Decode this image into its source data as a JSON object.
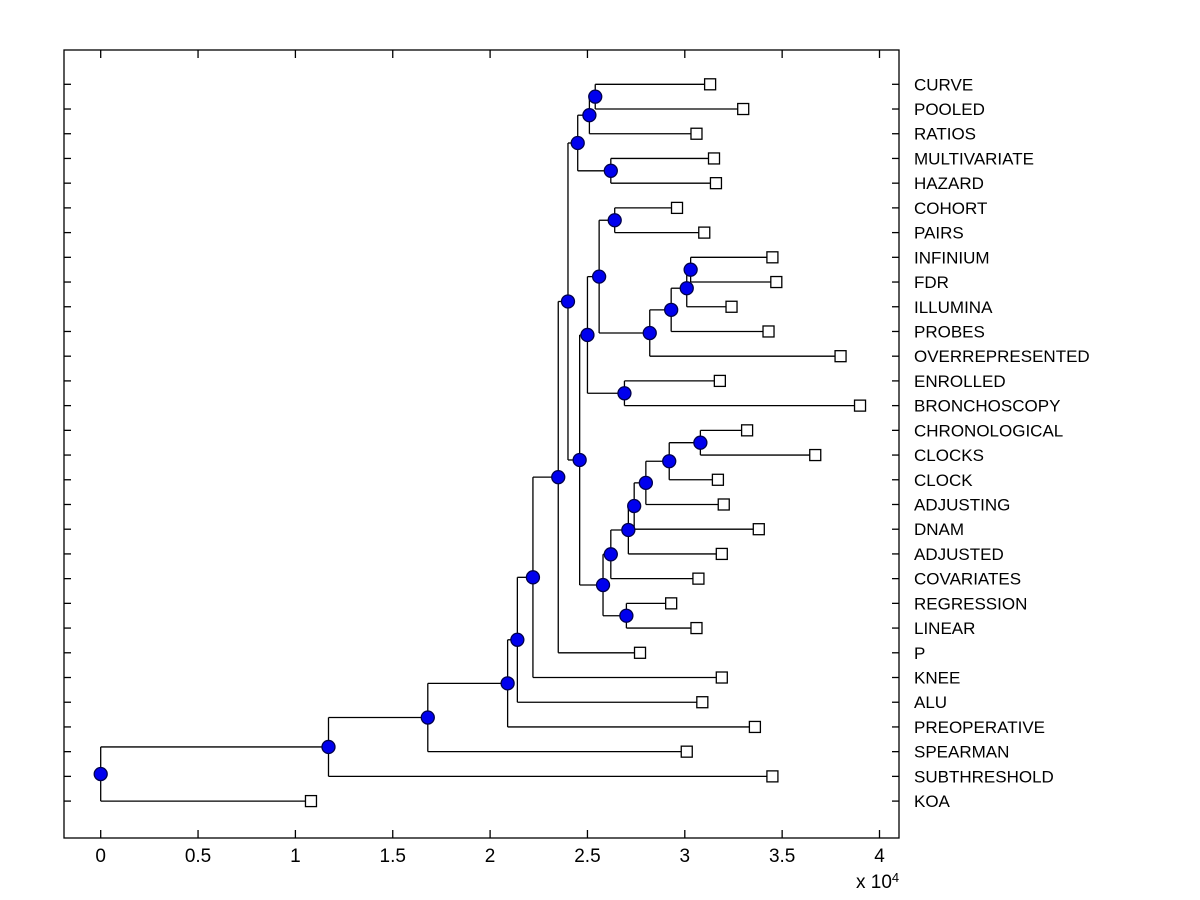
{
  "figure": {
    "background": "#ffffff",
    "kind": "MATLAB-style phylogenetic tree / dendrogram plot"
  },
  "colors": {
    "line": "#000000",
    "box": "#000000",
    "internal_node_fill": "#0000ee",
    "internal_node_edge": "#00004d",
    "leaf_marker_fill": "#ffffff",
    "leaf_marker_edge": "#000000",
    "text": "#000000"
  },
  "chart_data": {
    "type": "dendrogram",
    "orientation": "left-to-right",
    "title": "",
    "xlabel": "",
    "ylabel": "",
    "grid": false,
    "x_axis": {
      "tick_labels": [
        "0",
        "0.5",
        "1",
        "1.5",
        "2",
        "2.5",
        "3",
        "3.5",
        "4"
      ],
      "tick_values": [
        0,
        0.5,
        1,
        1.5,
        2,
        2.5,
        3,
        3.5,
        4
      ],
      "multiplier_prefix": "x 10",
      "multiplier_exponent": "4",
      "unit_scale": 10000,
      "range_units": [
        0,
        4.1
      ]
    },
    "leaf_order": [
      {
        "name": "CURVE",
        "dist": 3.13
      },
      {
        "name": "POOLED",
        "dist": 3.3
      },
      {
        "name": "RATIOS",
        "dist": 3.06
      },
      {
        "name": "MULTIVARIATE",
        "dist": 3.15
      },
      {
        "name": "HAZARD",
        "dist": 3.16
      },
      {
        "name": "COHORT",
        "dist": 2.96
      },
      {
        "name": "PAIRS",
        "dist": 3.1
      },
      {
        "name": "INFINIUM",
        "dist": 3.45
      },
      {
        "name": "FDR",
        "dist": 3.47
      },
      {
        "name": "ILLUMINA",
        "dist": 3.24
      },
      {
        "name": "PROBES",
        "dist": 3.43
      },
      {
        "name": "OVERREPRESENTED",
        "dist": 3.8
      },
      {
        "name": "ENROLLED",
        "dist": 3.18
      },
      {
        "name": "BRONCHOSCOPY",
        "dist": 3.9
      },
      {
        "name": "CHRONOLOGICAL",
        "dist": 3.32
      },
      {
        "name": "CLOCKS",
        "dist": 3.67
      },
      {
        "name": "CLOCK",
        "dist": 3.17
      },
      {
        "name": "ADJUSTING",
        "dist": 3.2
      },
      {
        "name": "DNAM",
        "dist": 3.38
      },
      {
        "name": "ADJUSTED",
        "dist": 3.19
      },
      {
        "name": "COVARIATES",
        "dist": 3.07
      },
      {
        "name": "REGRESSION",
        "dist": 2.93
      },
      {
        "name": "LINEAR",
        "dist": 3.06
      },
      {
        "name": "P",
        "dist": 2.77
      },
      {
        "name": "KNEE",
        "dist": 3.19
      },
      {
        "name": "ALU",
        "dist": 3.09
      },
      {
        "name": "PREOPERATIVE",
        "dist": 3.36
      },
      {
        "name": "SPEARMAN",
        "dist": 3.01
      },
      {
        "name": "SUBTHRESHOLD",
        "dist": 3.45
      },
      {
        "name": "KOA",
        "dist": 1.08
      }
    ],
    "tree": {
      "dist": 0.0,
      "children": [
        {
          "dist": 1.17,
          "children": [
            {
              "dist": 1.68,
              "children": [
                {
                  "dist": 2.09,
                  "children": [
                    {
                      "dist": 2.14,
                      "children": [
                        {
                          "dist": 2.22,
                          "children": [
                            {
                              "dist": 2.35,
                              "children": [
                                {
                                  "dist": 2.4,
                                  "children": [
                                    {
                                      "dist": 2.45,
                                      "children": [
                                        {
                                          "dist": 2.51,
                                          "children": [
                                            {
                                              "dist": 2.54,
                                              "children": [
                                                {
                                                  "leaf": "CURVE",
                                                  "dist": 3.13
                                                },
                                                {
                                                  "leaf": "POOLED",
                                                  "dist": 3.3
                                                }
                                              ]
                                            },
                                            {
                                              "leaf": "RATIOS",
                                              "dist": 3.06
                                            }
                                          ]
                                        },
                                        {
                                          "dist": 2.62,
                                          "children": [
                                            {
                                              "leaf": "MULTIVARIATE",
                                              "dist": 3.15
                                            },
                                            {
                                              "leaf": "HAZARD",
                                              "dist": 3.16
                                            }
                                          ]
                                        }
                                      ]
                                    },
                                    {
                                      "dist": 2.46,
                                      "children": [
                                        {
                                          "dist": 2.5,
                                          "children": [
                                            {
                                              "dist": 2.56,
                                              "children": [
                                                {
                                                  "dist": 2.64,
                                                  "children": [
                                                    {
                                                      "leaf": "COHORT",
                                                      "dist": 2.96
                                                    },
                                                    {
                                                      "leaf": "PAIRS",
                                                      "dist": 3.1
                                                    }
                                                  ]
                                                },
                                                {
                                                  "dist": 2.82,
                                                  "children": [
                                                    {
                                                      "dist": 2.93,
                                                      "children": [
                                                        {
                                                          "dist": 3.01,
                                                          "children": [
                                                            {
                                                              "dist": 3.03,
                                                              "children": [
                                                                {
                                                                  "leaf": "INFINIUM",
                                                                  "dist": 3.45
                                                                },
                                                                {
                                                                  "leaf": "FDR",
                                                                  "dist": 3.47
                                                                }
                                                              ]
                                                            },
                                                            {
                                                              "leaf": "ILLUMINA",
                                                              "dist": 3.24
                                                            }
                                                          ]
                                                        },
                                                        {
                                                          "leaf": "PROBES",
                                                          "dist": 3.43
                                                        }
                                                      ]
                                                    },
                                                    {
                                                      "leaf": "OVERREPRESENTED",
                                                      "dist": 3.8
                                                    }
                                                  ]
                                                }
                                              ]
                                            },
                                            {
                                              "dist": 2.69,
                                              "children": [
                                                {
                                                  "leaf": "ENROLLED",
                                                  "dist": 3.18
                                                },
                                                {
                                                  "leaf": "BRONCHOSCOPY",
                                                  "dist": 3.9
                                                }
                                              ]
                                            }
                                          ]
                                        },
                                        {
                                          "dist": 2.58,
                                          "children": [
                                            {
                                              "dist": 2.62,
                                              "children": [
                                                {
                                                  "dist": 2.71,
                                                  "children": [
                                                    {
                                                      "dist": 2.74,
                                                      "children": [
                                                        {
                                                          "dist": 2.8,
                                                          "children": [
                                                            {
                                                              "dist": 2.92,
                                                              "children": [
                                                                {
                                                                  "dist": 3.08,
                                                                  "children": [
                                                                    {
                                                                      "leaf": "CHRONOLOGICAL",
                                                                      "dist": 3.32
                                                                    },
                                                                    {
                                                                      "leaf": "CLOCKS",
                                                                      "dist": 3.67
                                                                    }
                                                                  ]
                                                                },
                                                                {
                                                                  "leaf": "CLOCK",
                                                                  "dist": 3.17
                                                                }
                                                              ]
                                                            },
                                                            {
                                                              "leaf": "ADJUSTING",
                                                              "dist": 3.2
                                                            }
                                                          ]
                                                        },
                                                        {
                                                          "leaf": "DNAM",
                                                          "dist": 3.38
                                                        }
                                                      ]
                                                    },
                                                    {
                                                      "leaf": "ADJUSTED",
                                                      "dist": 3.19
                                                    }
                                                  ]
                                                },
                                                {
                                                  "leaf": "COVARIATES",
                                                  "dist": 3.07
                                                }
                                              ]
                                            },
                                            {
                                              "dist": 2.7,
                                              "children": [
                                                {
                                                  "leaf": "REGRESSION",
                                                  "dist": 2.93
                                                },
                                                {
                                                  "leaf": "LINEAR",
                                                  "dist": 3.06
                                                }
                                              ]
                                            }
                                          ]
                                        }
                                      ]
                                    }
                                  ]
                                },
                                {
                                  "leaf": "P",
                                  "dist": 2.77
                                }
                              ]
                            },
                            {
                              "leaf": "KNEE",
                              "dist": 3.19
                            }
                          ]
                        },
                        {
                          "leaf": "ALU",
                          "dist": 3.09
                        }
                      ]
                    },
                    {
                      "leaf": "PREOPERATIVE",
                      "dist": 3.36
                    }
                  ]
                },
                {
                  "leaf": "SPEARMAN",
                  "dist": 3.01
                }
              ]
            },
            {
              "leaf": "SUBTHRESHOLD",
              "dist": 3.45
            }
          ]
        },
        {
          "leaf": "KOA",
          "dist": 1.08
        }
      ]
    }
  }
}
